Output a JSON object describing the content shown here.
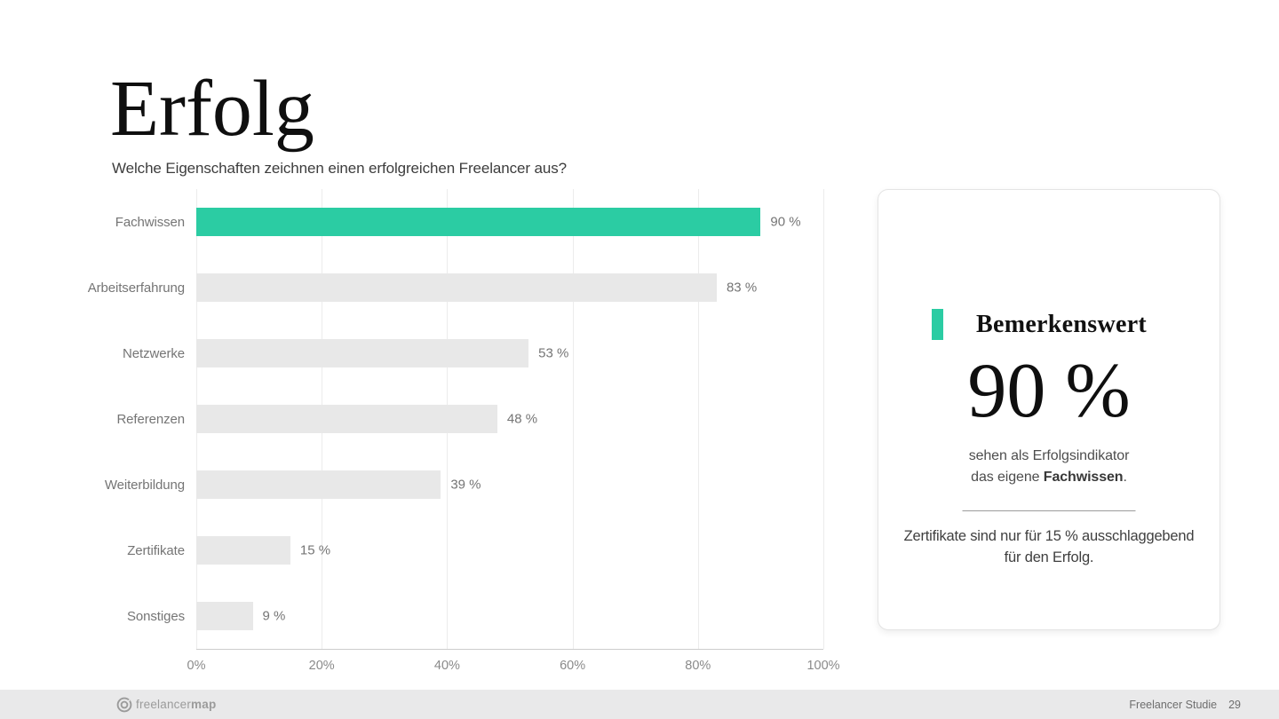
{
  "slide": {
    "title": "Erfolg",
    "subtitle": "Welche Eigenschaften zeichnen einen erfolgreichen Freelancer aus?"
  },
  "chart_data": {
    "type": "bar",
    "orientation": "horizontal",
    "title": "Welche Eigenschaften zeichnen einen erfolgreichen Freelancer aus?",
    "categories": [
      "Fachwissen",
      "Arbeitserfahrung",
      "Netzwerke",
      "Referenzen",
      "Weiterbildung",
      "Zertifikate",
      "Sonstiges"
    ],
    "values": [
      90,
      83,
      53,
      48,
      39,
      15,
      9
    ],
    "value_labels": [
      "90 %",
      "83 %",
      "53 %",
      "48 %",
      "39 %",
      "15 %",
      "9 %"
    ],
    "x_ticks": [
      "0%",
      "20%",
      "40%",
      "60%",
      "80%",
      "100%"
    ],
    "xlim": [
      0,
      100
    ],
    "grid": true,
    "highlight_index": 0,
    "highlight_color": "#2bcca3",
    "bar_color": "#e8e8e8"
  },
  "callout": {
    "accent_color": "#2bcca3",
    "heading": "Bemerkenswert",
    "big_number": "90 %",
    "line1": "sehen als Erfolgsindikator",
    "line2_prefix": "das eigene ",
    "line2_bold": "Fachwissen",
    "line2_suffix": ".",
    "note": "Zertifikate sind nur für 15 % ausschlaggebend für den Erfolg."
  },
  "footer": {
    "logo_text_light": "freelancer",
    "logo_text_bold": "map",
    "label": "Freelancer Studie",
    "page_number": "29"
  }
}
